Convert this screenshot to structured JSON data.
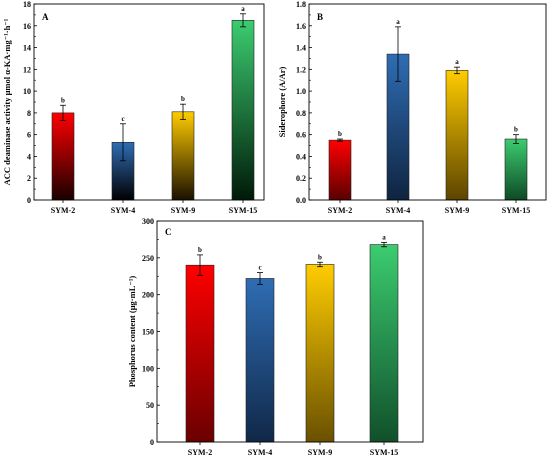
{
  "chart_data": [
    {
      "panel": "A",
      "type": "bar",
      "categories": [
        "SYM-2",
        "SYM-4",
        "SYM-9",
        "SYM-15"
      ],
      "values": [
        8.0,
        5.3,
        8.1,
        16.5
      ],
      "errors": [
        0.7,
        1.7,
        0.7,
        0.6
      ],
      "letters": [
        "b",
        "c",
        "b",
        "a"
      ],
      "ylabel": "ACC deaminase activity μmol α-KA·mg⁻¹·h⁻¹",
      "xlabel": "",
      "ylim": [
        0,
        18
      ],
      "yticks": [
        0,
        2,
        4,
        6,
        8,
        10,
        12,
        14,
        16,
        18
      ],
      "colors": [
        [
          "#ff0000",
          "#1a0000"
        ],
        [
          "#2f6db4",
          "#000000"
        ],
        [
          "#ffcc00",
          "#1a1000"
        ],
        [
          "#3ccc70",
          "#001a08"
        ]
      ]
    },
    {
      "panel": "B",
      "type": "bar",
      "categories": [
        "SYM-2",
        "SYM-4",
        "SYM-9",
        "SYM-15"
      ],
      "values": [
        0.55,
        1.34,
        1.19,
        0.56
      ],
      "errors": [
        0.01,
        0.25,
        0.03,
        0.04
      ],
      "letters": [
        "b",
        "a",
        "a",
        "b"
      ],
      "ylabel": "Siderophore (A/Ar)",
      "xlabel": "",
      "ylim": [
        0,
        1.8
      ],
      "yticks": [
        "0.0",
        "0.2",
        "0.4",
        "0.6",
        "0.8",
        "1.0",
        "1.2",
        "1.4",
        "1.6",
        "1.8"
      ],
      "colors": [
        [
          "#ff0000",
          "#5a0000"
        ],
        [
          "#2f6db4",
          "#0f2440"
        ],
        [
          "#ffcc00",
          "#5c4400"
        ],
        [
          "#3ccc70",
          "#0e4a25"
        ]
      ]
    },
    {
      "panel": "C",
      "type": "bar",
      "categories": [
        "SYM-2",
        "SYM-4",
        "SYM-9",
        "SYM-15"
      ],
      "values": [
        240,
        222,
        241,
        268
      ],
      "errors": [
        14,
        8,
        3,
        3
      ],
      "letters": [
        "b",
        "c",
        "b",
        "a"
      ],
      "ylabel": "Phosphorus content (μg·mL⁻¹)",
      "xlabel": "",
      "ylim": [
        0,
        300
      ],
      "yticks": [
        0,
        50,
        100,
        150,
        200,
        250,
        300
      ],
      "colors": [
        [
          "#ff0000",
          "#6a0000"
        ],
        [
          "#2f6db4",
          "#102848"
        ],
        [
          "#ffcc00",
          "#6a5000"
        ],
        [
          "#3ccc70",
          "#10502a"
        ]
      ]
    }
  ]
}
